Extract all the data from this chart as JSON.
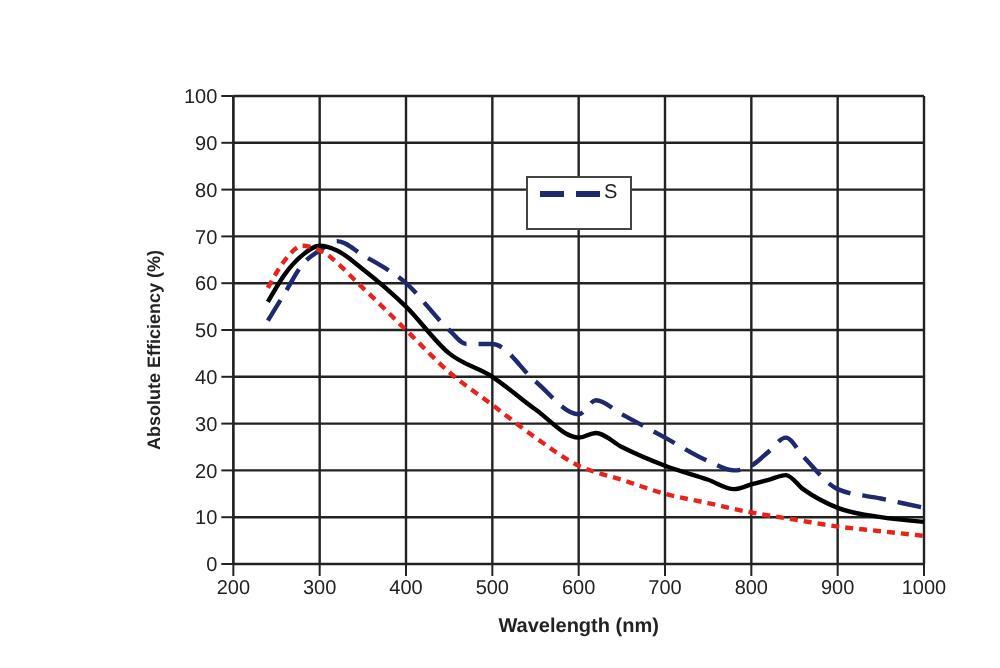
{
  "chart_data": {
    "type": "line",
    "xlabel": "Wavelength (nm)",
    "ylabel": "Absolute Efficiency (%)",
    "xlim": [
      200,
      1000
    ],
    "xticks": [
      200,
      300,
      400,
      500,
      600,
      700,
      800,
      900,
      1000
    ],
    "ylim": [
      0,
      100
    ],
    "yticks": [
      0,
      10,
      20,
      30,
      40,
      50,
      60,
      70,
      80,
      90,
      100
    ],
    "grid": true,
    "legend": "top",
    "marker": "none",
    "series": [
      {
        "name": "S",
        "color": "#1f2a6e",
        "line_style": "dashed",
        "x": [
          240,
          260,
          280,
          300,
          320,
          350,
          400,
          450,
          470,
          500,
          550,
          600,
          620,
          650,
          700,
          750,
          780,
          800,
          820,
          840,
          860,
          900,
          950,
          1000
        ],
        "values": [
          52,
          58,
          64,
          67,
          69,
          66,
          60,
          50,
          47,
          47,
          39,
          32,
          35,
          32,
          27,
          22,
          20,
          21,
          24,
          27,
          23,
          16,
          14,
          12
        ]
      },
      {
        "color": "#000000",
        "line_style": "solid",
        "x": [
          240,
          260,
          280,
          300,
          320,
          350,
          400,
          450,
          500,
          550,
          600,
          620,
          650,
          700,
          750,
          780,
          800,
          820,
          840,
          860,
          900,
          950,
          1000
        ],
        "values": [
          56,
          62,
          66,
          68,
          67,
          63,
          55,
          45,
          40,
          33,
          27,
          28,
          25,
          21,
          18,
          16,
          17,
          18,
          19,
          16,
          12,
          10,
          9
        ]
      },
      {
        "color": "#e8231c",
        "line_style": "dotted",
        "x": [
          240,
          260,
          280,
          300,
          350,
          400,
          450,
          500,
          550,
          600,
          650,
          700,
          750,
          800,
          850,
          900,
          950,
          1000
        ],
        "values": [
          59,
          65,
          68,
          67,
          59,
          50,
          41,
          34,
          27,
          21,
          18,
          15,
          13,
          11,
          9.5,
          8,
          7,
          6
        ]
      }
    ]
  }
}
